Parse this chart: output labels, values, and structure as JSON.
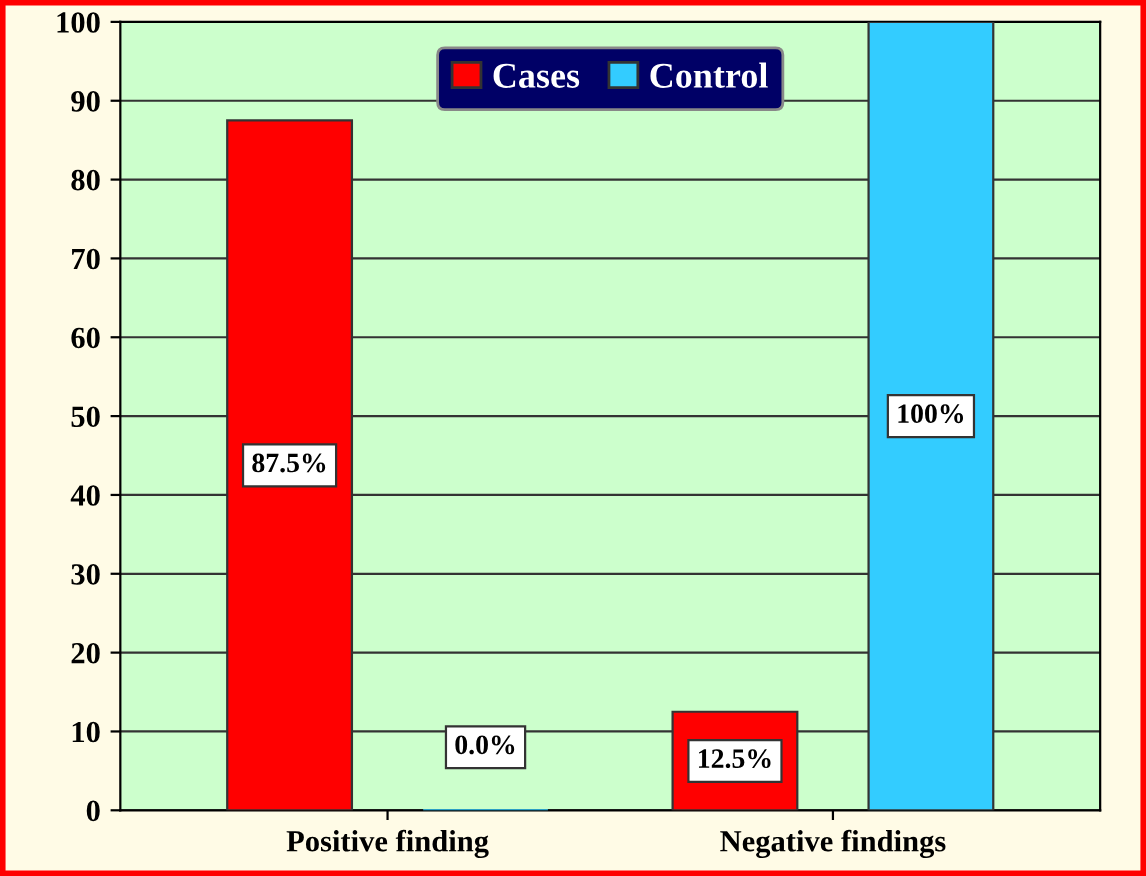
{
  "chart_data": {
    "type": "bar",
    "categories": [
      "Positive finding",
      "Negative findings"
    ],
    "series": [
      {
        "name": "Cases",
        "color": "#ff0000",
        "values": [
          87.5,
          12.5
        ],
        "value_labels": [
          "87.5%",
          "12.5%"
        ]
      },
      {
        "name": "Control",
        "color": "#33ccff",
        "values": [
          0.0,
          100
        ],
        "value_labels": [
          "0.0%",
          "100%"
        ]
      }
    ],
    "ylim": [
      0,
      100
    ],
    "yticks": [
      0,
      10,
      20,
      30,
      40,
      50,
      60,
      70,
      80,
      90,
      100
    ],
    "grid": "y",
    "legend": "top"
  }
}
